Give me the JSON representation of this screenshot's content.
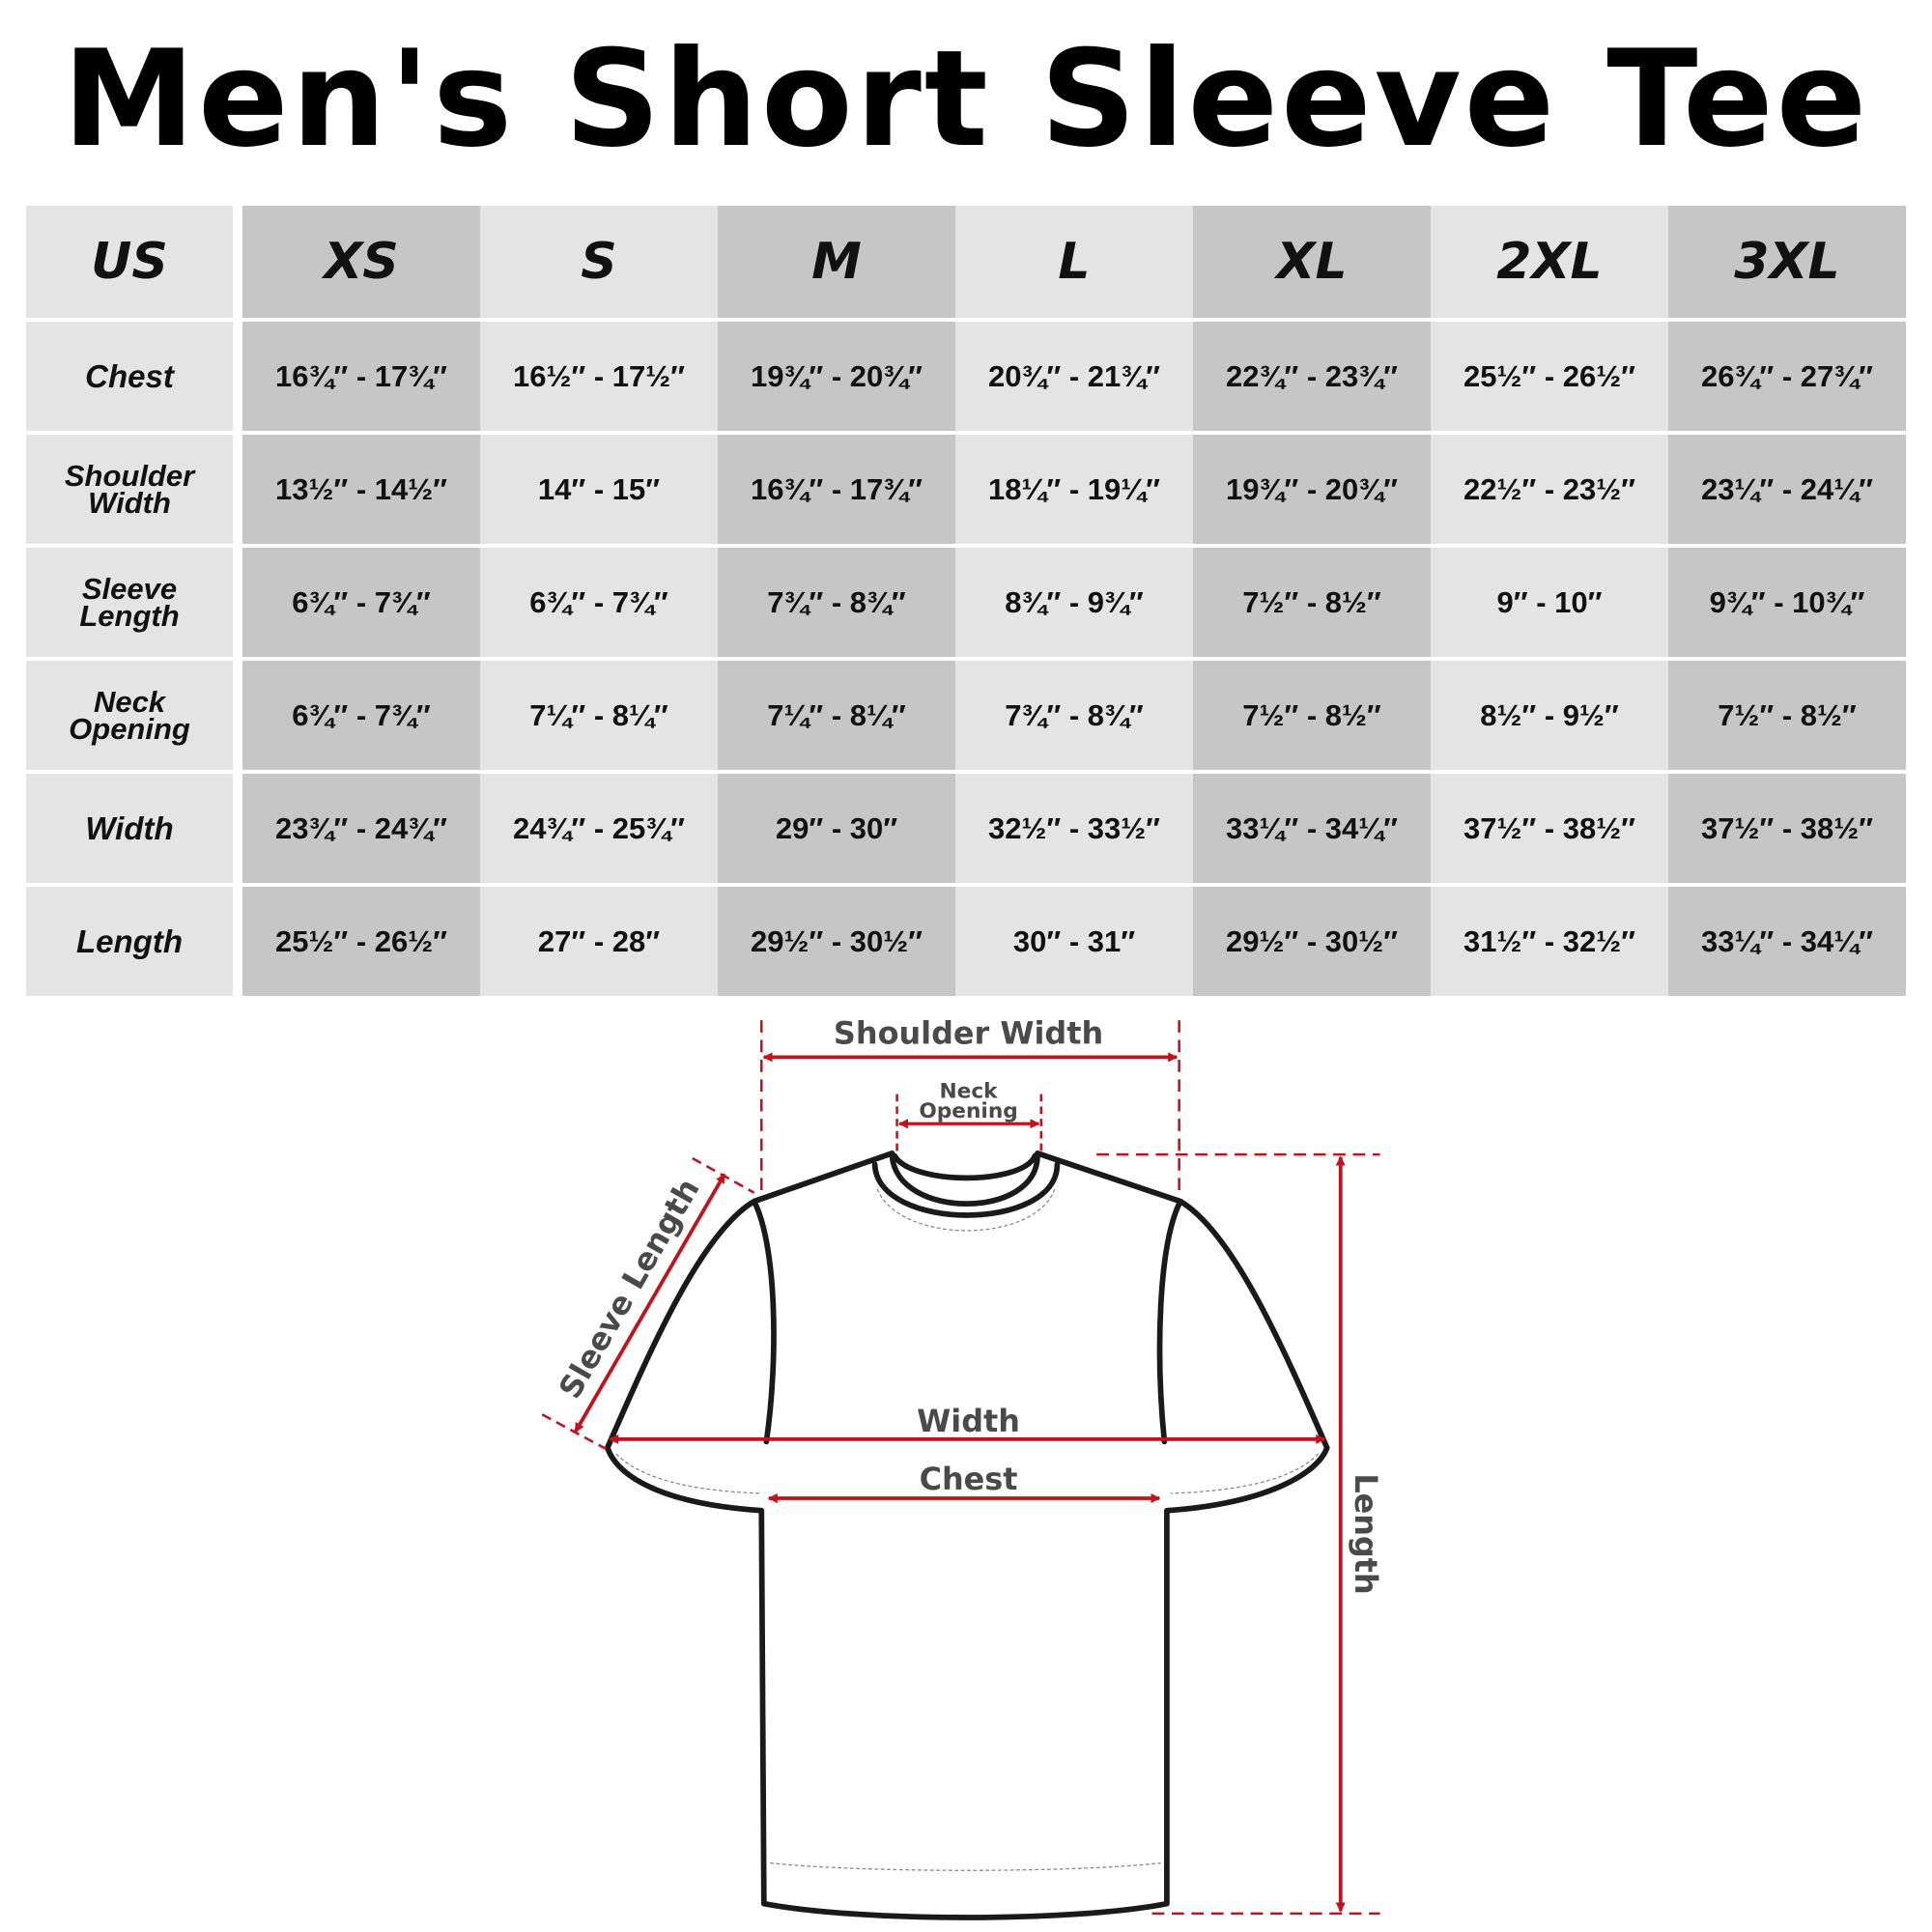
{
  "title": "Men's Short Sleeve Tee",
  "table": {
    "corner": "US",
    "sizes": [
      "XS",
      "S",
      "M",
      "L",
      "XL",
      "2XL",
      "3XL"
    ],
    "rows": [
      {
        "label": "Chest",
        "values": [
          "16¾″ - 17¾″",
          "16½″ - 17½″",
          "19¾″ - 20¾″",
          "20¾″ - 21¾″",
          "22¾″ - 23¾″",
          "25½″ - 26½″",
          "26¾″ - 27¾″"
        ]
      },
      {
        "label": "Shoulder Width",
        "values": [
          "13½″ - 14½″",
          "14″ - 15″",
          "16¾″ - 17¾″",
          "18¼″ - 19¼″",
          "19¾″ - 20¾″",
          "22½″ - 23½″",
          "23¼″ - 24¼″"
        ]
      },
      {
        "label": "Sleeve Length",
        "values": [
          "6¾″ - 7¾″",
          "6¾″ - 7¾″",
          "7¾″ - 8¾″",
          "8¾″ - 9¾″",
          "7½″ - 8½″",
          "9″ - 10″",
          "9¾″ - 10¾″"
        ]
      },
      {
        "label": "Neck Opening",
        "values": [
          "6¾″ - 7¾″",
          "7¼″ - 8¼″",
          "7¼″ - 8¼″",
          "7¾″ - 8¾″",
          "7½″ - 8½″",
          "8½″ - 9½″",
          "7½″ - 8½″"
        ]
      },
      {
        "label": "Width",
        "values": [
          "23¾″ - 24¾″",
          "24¾″ - 25¾″",
          "29″ - 30″",
          "32½″ - 33½″",
          "33¼″ - 34¼″",
          "37½″ - 38½″",
          "37½″ - 38½″"
        ]
      },
      {
        "label": "Length",
        "values": [
          "25½″ - 26½″",
          "27″ - 28″",
          "29½″ - 30½″",
          "30″ - 31″",
          "29½″ - 30½″",
          "31½″ - 32½″",
          "33¼″ - 34¼″"
        ]
      }
    ]
  },
  "diagram": {
    "shoulder_width": "Shoulder Width",
    "neck_opening_1": "Neck",
    "neck_opening_2": "Opening",
    "sleeve_length": "Sleeve Length",
    "width": "Width",
    "chest": "Chest",
    "length": "Length",
    "measure_color": "#c0141c"
  }
}
